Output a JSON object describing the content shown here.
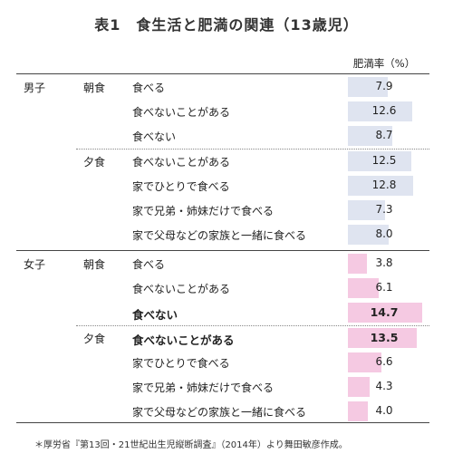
{
  "title": "表1　食生活と肥満の関連（13歳児）",
  "column_header": "肥満率（%）",
  "colors": {
    "boys_bar": "#dfe4f0",
    "girls_bar": "#f5c9e2"
  },
  "footnote": "＊厚労省『第13回・21世紀出生児縦断調査』（2014年）より舞田敏彦作成。",
  "boys": {
    "gender": "男子",
    "rows": [
      {
        "meal": "朝食",
        "label": "食べる",
        "value": "7.9",
        "bold": false
      },
      {
        "meal": "",
        "label": "食べないことがある",
        "value": "12.6",
        "bold": false
      },
      {
        "meal": "",
        "label": "食べない",
        "value": "8.7",
        "bold": false
      },
      {
        "meal": "夕食",
        "label": "食べないことがある",
        "value": "12.5",
        "bold": false
      },
      {
        "meal": "",
        "label": "家でひとりで食べる",
        "value": "12.8",
        "bold": false
      },
      {
        "meal": "",
        "label": "家で兄弟・姉妹だけで食べる",
        "value": "7.3",
        "bold": false
      },
      {
        "meal": "",
        "label": "家で父母などの家族と一緒に食べる",
        "value": "8.0",
        "bold": false
      }
    ]
  },
  "girls": {
    "gender": "女子",
    "rows": [
      {
        "meal": "朝食",
        "label": "食べる",
        "value": "3.8",
        "bold": false
      },
      {
        "meal": "",
        "label": "食べないことがある",
        "value": "6.1",
        "bold": false
      },
      {
        "meal": "",
        "label": "食べない",
        "value": "14.7",
        "bold": true
      },
      {
        "meal": "夕食",
        "label": "食べないことがある",
        "value": "13.5",
        "bold": true
      },
      {
        "meal": "",
        "label": "家でひとりで食べる",
        "value": "6.6",
        "bold": false
      },
      {
        "meal": "",
        "label": "家で兄弟・姉妹だけで食べる",
        "value": "4.3",
        "bold": false
      },
      {
        "meal": "",
        "label": "家で父母などの家族と一緒に食べる",
        "value": "4.0",
        "bold": false
      }
    ]
  }
}
